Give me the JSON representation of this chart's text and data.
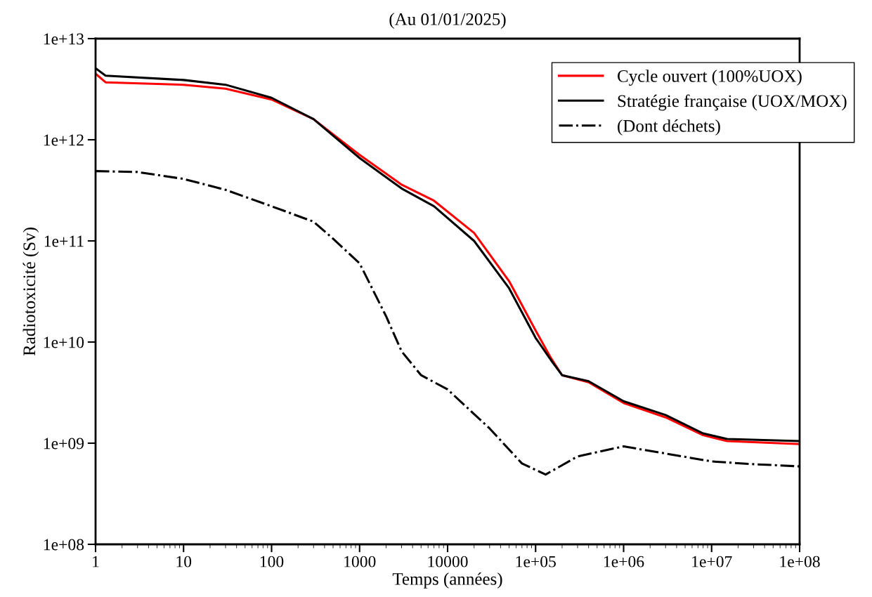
{
  "chart_data": {
    "type": "line",
    "title": "(Au 01/01/2025)",
    "xlabel": "Temps (années)",
    "ylabel": "Radiotoxicité (Sv)",
    "log": "xy",
    "grid": false,
    "legend": "top right",
    "marker": "none",
    "xlim": [
      1,
      100000000.0
    ],
    "xticks": [
      1,
      10,
      100,
      1000,
      10000,
      {
        "value": 100000.0,
        "label": "1e+05"
      },
      {
        "value": 1000000.0,
        "label": "1e+06"
      },
      {
        "value": 10000000.0,
        "label": "1e+07"
      },
      {
        "value": 100000000.0,
        "label": "1e+08"
      }
    ],
    "ylim": [
      100000000.0,
      10000000000000.0
    ],
    "yticks": [
      {
        "value": 100000000.0,
        "label": "1e+08"
      },
      {
        "value": 1000000000.0,
        "label": "1e+09"
      },
      {
        "value": 10000000000.0,
        "label": "1e+10"
      },
      {
        "value": 100000000000.0,
        "label": "1e+11"
      },
      {
        "value": 1000000000000.0,
        "label": "1e+12"
      },
      {
        "value": 10000000000000.0,
        "label": "1e+13"
      }
    ],
    "series": [
      {
        "name": "Cycle ouvert (100%UOX)",
        "color": "#ff0000",
        "line_style": "solid",
        "x": [
          1,
          1.3,
          10,
          30,
          100,
          300,
          1000,
          3000,
          7000,
          20000,
          50000,
          100000,
          150000,
          200000,
          400000,
          1000000,
          3000000,
          8000000,
          15000000,
          100000000
        ],
        "values": [
          4500000000000.0,
          3700000000000.0,
          3500000000000.0,
          3200000000000.0,
          2500000000000.0,
          1600000000000.0,
          710000000000.0,
          360000000000.0,
          250000000000.0,
          120000000000.0,
          40000000000.0,
          13000000000.0,
          6900000000.0,
          4700000000.0,
          4000000000.0,
          2500000000.0,
          1800000000.0,
          1200000000.0,
          1050000000.0,
          980000000.0
        ]
      },
      {
        "name": "Stratégie française (UOX/MOX)",
        "color": "#000000",
        "line_style": "solid",
        "x": [
          1,
          1.3,
          10,
          30,
          100,
          300,
          1000,
          3000,
          7000,
          20000,
          50000,
          100000,
          150000,
          200000,
          400000,
          1000000,
          3000000,
          8000000,
          15000000,
          100000000
        ],
        "values": [
          5100000000000.0,
          4300000000000.0,
          3900000000000.0,
          3500000000000.0,
          2600000000000.0,
          1600000000000.0,
          660000000000.0,
          330000000000.0,
          220000000000.0,
          100000000000.0,
          34000000000.0,
          11000000000.0,
          6600000000.0,
          4700000000.0,
          4100000000.0,
          2600000000.0,
          1900000000.0,
          1250000000.0,
          1100000000.0,
          1050000000.0
        ]
      },
      {
        "name": "(Dont déchets)",
        "color": "#000000",
        "line_style": "dashdot",
        "x": [
          1,
          3,
          10,
          30,
          100,
          300,
          500,
          1000,
          2000,
          3000,
          5000,
          10000,
          30000,
          70000,
          130000,
          300000,
          1000000,
          3000000,
          10000000,
          30000000,
          100000000
        ],
        "values": [
          490000000000.0,
          480000000000.0,
          410000000000.0,
          320000000000.0,
          220000000000.0,
          155000000000.0,
          105000000000.0,
          60000000000.0,
          18000000000.0,
          8100000000.0,
          4700000000.0,
          3400000000.0,
          1400000000.0,
          630000000.0,
          490000000.0,
          740000000.0,
          930000000.0,
          790000000.0,
          660000000.0,
          620000000.0,
          590000000.0
        ]
      }
    ]
  }
}
